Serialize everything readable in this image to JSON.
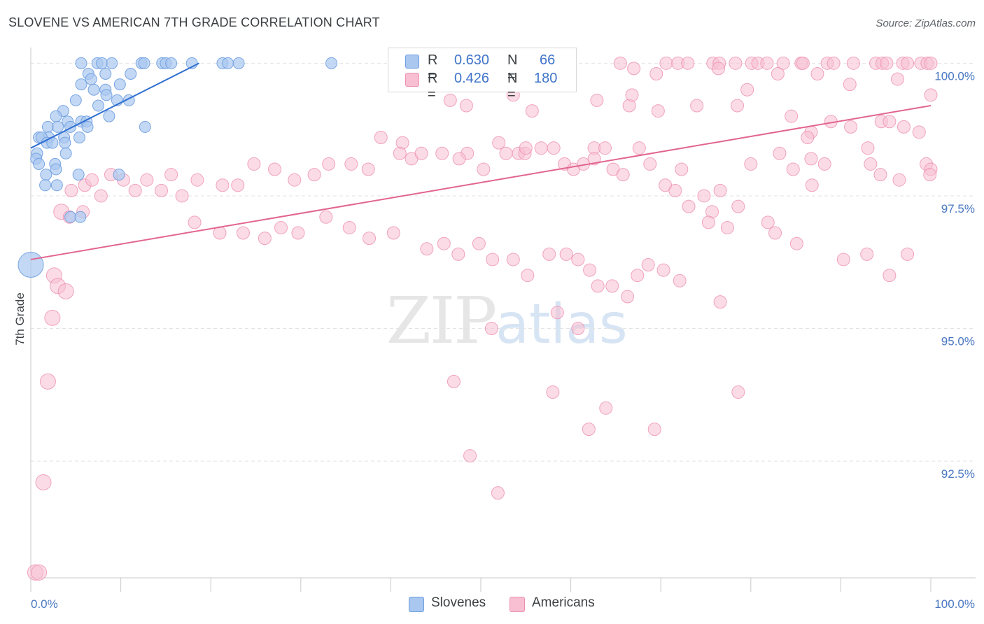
{
  "header": {
    "title": "SLOVENE VS AMERICAN 7TH GRADE CORRELATION CHART",
    "source": "Source: ZipAtlas.com"
  },
  "watermark": {
    "zip": "ZIP",
    "atlas": "atlas"
  },
  "legend": {
    "series1": {
      "r_label": "R =",
      "r_value": "0.630",
      "n_label": "N =",
      "n_value": "66"
    },
    "series2": {
      "r_label": "R =",
      "r_value": "0.426",
      "n_label": "N =",
      "n_value": "180"
    }
  },
  "bottom_legend": {
    "series1": "Slovenes",
    "series2": "Americans"
  },
  "colors": {
    "slovenes_fill": "#a9c7ef",
    "slovenes_stroke": "#6d9de0",
    "slovenes_line": "#2f6fd0",
    "americans_fill": "#f7bfd1",
    "americans_stroke": "#ee8fb0",
    "americans_line": "#e2658f",
    "tick_color": "#4a78c2",
    "grid": "#e3e3e3"
  },
  "chart_data": {
    "type": "scatter",
    "title": "SLOVENE VS AMERICAN 7TH GRADE CORRELATION CHART",
    "xlabel": "",
    "ylabel": "7th Grade",
    "xlim": [
      0,
      100
    ],
    "ylim": [
      90.3,
      100.4
    ],
    "x_ticks": [
      0,
      100
    ],
    "x_tick_labels": [
      "0.0%",
      "100.0%"
    ],
    "y_ticks": [
      92.5,
      95.0,
      97.5,
      100.0
    ],
    "y_tick_labels": [
      "92.5%",
      "95.0%",
      "97.5%",
      "100.0%"
    ],
    "grid": true,
    "legend_position": "top-center",
    "series": [
      {
        "name": "Slovenes",
        "r": 0.63,
        "n": 66,
        "trend": {
          "x": [
            0,
            18.7
          ],
          "y": [
            98.4,
            100.0
          ]
        },
        "points": [
          [
            5.6,
            100.0
          ],
          [
            7.4,
            100.0
          ],
          [
            7.9,
            100.0
          ],
          [
            9.0,
            100.0
          ],
          [
            12.3,
            100.0
          ],
          [
            12.6,
            100.0
          ],
          [
            14.6,
            100.0
          ],
          [
            15.0,
            100.0
          ],
          [
            15.6,
            100.0
          ],
          [
            17.9,
            100.0
          ],
          [
            21.3,
            100.0
          ],
          [
            21.9,
            100.0
          ],
          [
            23.1,
            100.0
          ],
          [
            33.4,
            100.0
          ],
          [
            6.4,
            99.8
          ],
          [
            8.3,
            99.8
          ],
          [
            11.1,
            99.8
          ],
          [
            5.6,
            99.6
          ],
          [
            6.7,
            99.7
          ],
          [
            7.0,
            99.5
          ],
          [
            8.3,
            99.5
          ],
          [
            9.9,
            99.6
          ],
          [
            8.4,
            99.4
          ],
          [
            5.0,
            99.3
          ],
          [
            9.6,
            99.3
          ],
          [
            10.9,
            99.3
          ],
          [
            3.6,
            99.1
          ],
          [
            7.5,
            99.2
          ],
          [
            4.1,
            98.9
          ],
          [
            5.6,
            98.9
          ],
          [
            6.2,
            98.9
          ],
          [
            8.7,
            99.0
          ],
          [
            2.8,
            99.0
          ],
          [
            1.9,
            98.8
          ],
          [
            3.0,
            98.8
          ],
          [
            4.4,
            98.8
          ],
          [
            6.3,
            98.8
          ],
          [
            2.0,
            98.6
          ],
          [
            3.7,
            98.6
          ],
          [
            5.4,
            98.6
          ],
          [
            12.7,
            98.8
          ],
          [
            0.9,
            98.6
          ],
          [
            1.2,
            98.6
          ],
          [
            1.8,
            98.5
          ],
          [
            2.4,
            98.5
          ],
          [
            3.8,
            98.5
          ],
          [
            0.7,
            98.3
          ],
          [
            0.6,
            98.2
          ],
          [
            3.9,
            98.3
          ],
          [
            0.9,
            98.1
          ],
          [
            2.7,
            98.1
          ],
          [
            1.7,
            97.9
          ],
          [
            2.8,
            98.0
          ],
          [
            9.8,
            97.9
          ],
          [
            1.6,
            97.7
          ],
          [
            2.9,
            97.7
          ],
          [
            5.3,
            97.9
          ],
          [
            5.5,
            97.1
          ],
          [
            4.4,
            97.1
          ],
          [
            0.0,
            96.2
          ]
        ]
      },
      {
        "name": "Americans",
        "r": 0.426,
        "n": 180,
        "trend": {
          "x": [
            0,
            100
          ],
          "y": [
            96.3,
            99.2
          ]
        },
        "points": [
          [
            59.0,
            100.0
          ],
          [
            65.5,
            100.0
          ],
          [
            70.6,
            100.0
          ],
          [
            71.9,
            100.0
          ],
          [
            75.8,
            100.0
          ],
          [
            76.5,
            100.0
          ],
          [
            78.3,
            100.0
          ],
          [
            80.1,
            100.0
          ],
          [
            80.8,
            100.0
          ],
          [
            83.6,
            100.0
          ],
          [
            85.6,
            100.0
          ],
          [
            85.8,
            100.0
          ],
          [
            88.5,
            100.0
          ],
          [
            89.2,
            100.0
          ],
          [
            91.4,
            100.0
          ],
          [
            93.9,
            100.0
          ],
          [
            94.6,
            100.0
          ],
          [
            95.1,
            100.0
          ],
          [
            96.9,
            100.0
          ],
          [
            97.4,
            100.0
          ],
          [
            98.9,
            100.0
          ],
          [
            99.6,
            100.0
          ],
          [
            100.0,
            100.0
          ],
          [
            81.8,
            100.0
          ],
          [
            73.0,
            100.0
          ],
          [
            67.0,
            99.9
          ],
          [
            69.5,
            99.8
          ],
          [
            76.4,
            99.9
          ],
          [
            83.0,
            99.8
          ],
          [
            87.4,
            99.8
          ],
          [
            96.3,
            99.7
          ],
          [
            91.0,
            99.6
          ],
          [
            79.6,
            99.5
          ],
          [
            100.0,
            99.4
          ],
          [
            55.5,
            99.6
          ],
          [
            46.6,
            99.3
          ],
          [
            48.4,
            99.2
          ],
          [
            53.6,
            99.4
          ],
          [
            55.7,
            99.1
          ],
          [
            62.9,
            99.3
          ],
          [
            66.5,
            99.2
          ],
          [
            66.8,
            99.4
          ],
          [
            69.7,
            99.1
          ],
          [
            74.0,
            99.2
          ],
          [
            78.5,
            99.2
          ],
          [
            84.5,
            99.0
          ],
          [
            86.7,
            98.7
          ],
          [
            86.3,
            98.6
          ],
          [
            88.9,
            98.9
          ],
          [
            91.1,
            98.8
          ],
          [
            94.5,
            98.9
          ],
          [
            95.4,
            98.9
          ],
          [
            97.0,
            98.8
          ],
          [
            98.7,
            98.7
          ],
          [
            93.0,
            98.4
          ],
          [
            99.5,
            98.1
          ],
          [
            100.0,
            98.0
          ],
          [
            38.9,
            98.6
          ],
          [
            41.3,
            98.5
          ],
          [
            48.5,
            98.3
          ],
          [
            52.0,
            98.5
          ],
          [
            54.2,
            98.3
          ],
          [
            54.9,
            98.3
          ],
          [
            58.1,
            98.4
          ],
          [
            62.6,
            98.4
          ],
          [
            67.6,
            98.4
          ],
          [
            72.3,
            98.0
          ],
          [
            80.0,
            98.1
          ],
          [
            83.2,
            98.3
          ],
          [
            84.7,
            98.0
          ],
          [
            86.7,
            98.2
          ],
          [
            88.2,
            98.1
          ],
          [
            93.3,
            98.1
          ],
          [
            94.4,
            97.9
          ],
          [
            96.5,
            97.8
          ],
          [
            99.9,
            97.9
          ],
          [
            18.5,
            97.8
          ],
          [
            21.3,
            97.7
          ],
          [
            23.0,
            97.7
          ],
          [
            24.8,
            98.1
          ],
          [
            27.1,
            98.0
          ],
          [
            29.3,
            97.8
          ],
          [
            31.5,
            97.9
          ],
          [
            33.1,
            98.1
          ],
          [
            35.6,
            98.1
          ],
          [
            37.5,
            98.0
          ],
          [
            41.0,
            98.3
          ],
          [
            42.3,
            98.2
          ],
          [
            43.4,
            98.3
          ],
          [
            45.7,
            98.3
          ],
          [
            47.6,
            98.2
          ],
          [
            50.3,
            98.0
          ],
          [
            52.8,
            98.3
          ],
          [
            55.0,
            98.4
          ],
          [
            56.7,
            98.4
          ],
          [
            59.3,
            98.1
          ],
          [
            60.3,
            98.0
          ],
          [
            61.4,
            98.1
          ],
          [
            62.6,
            98.2
          ],
          [
            63.8,
            98.4
          ],
          [
            64.7,
            98.0
          ],
          [
            65.8,
            97.9
          ],
          [
            68.8,
            98.1
          ],
          [
            70.5,
            97.7
          ],
          [
            71.6,
            97.6
          ],
          [
            73.1,
            97.3
          ],
          [
            74.8,
            97.5
          ],
          [
            75.7,
            97.2
          ],
          [
            75.3,
            97.0
          ],
          [
            76.6,
            97.6
          ],
          [
            77.4,
            96.9
          ],
          [
            78.6,
            97.3
          ],
          [
            81.9,
            97.0
          ],
          [
            82.7,
            96.8
          ],
          [
            85.1,
            96.6
          ],
          [
            86.8,
            97.7
          ],
          [
            90.3,
            96.3
          ],
          [
            92.9,
            96.4
          ],
          [
            95.4,
            96.0
          ],
          [
            97.4,
            96.4
          ],
          [
            18.2,
            97.0
          ],
          [
            21.0,
            96.8
          ],
          [
            23.6,
            96.8
          ],
          [
            26.0,
            96.7
          ],
          [
            27.8,
            96.9
          ],
          [
            29.7,
            96.8
          ],
          [
            32.8,
            97.1
          ],
          [
            35.4,
            96.9
          ],
          [
            37.6,
            96.7
          ],
          [
            40.3,
            96.8
          ],
          [
            44.0,
            96.5
          ],
          [
            45.9,
            96.6
          ],
          [
            47.5,
            96.4
          ],
          [
            49.8,
            96.6
          ],
          [
            51.3,
            96.3
          ],
          [
            53.6,
            96.3
          ],
          [
            55.2,
            96.0
          ],
          [
            57.6,
            96.4
          ],
          [
            59.5,
            96.4
          ],
          [
            60.8,
            96.3
          ],
          [
            62.1,
            96.1
          ],
          [
            63.0,
            95.8
          ],
          [
            64.6,
            95.8
          ],
          [
            66.3,
            95.6
          ],
          [
            67.4,
            96.0
          ],
          [
            68.6,
            96.2
          ],
          [
            70.3,
            96.1
          ],
          [
            72.1,
            95.9
          ],
          [
            4.5,
            97.6
          ],
          [
            6.0,
            97.7
          ],
          [
            6.8,
            97.8
          ],
          [
            7.8,
            97.5
          ],
          [
            8.9,
            97.9
          ],
          [
            10.3,
            97.8
          ],
          [
            11.6,
            97.6
          ],
          [
            12.9,
            97.8
          ],
          [
            14.5,
            97.6
          ],
          [
            15.6,
            97.9
          ],
          [
            16.8,
            97.5
          ],
          [
            3.4,
            97.2
          ],
          [
            5.8,
            97.2
          ],
          [
            4.3,
            97.1
          ],
          [
            2.6,
            96.0
          ],
          [
            3.0,
            95.8
          ],
          [
            3.9,
            95.7
          ],
          [
            2.4,
            95.2
          ],
          [
            1.9,
            94.0
          ],
          [
            1.4,
            92.1
          ],
          [
            0.5,
            90.4
          ],
          [
            0.9,
            90.4
          ],
          [
            47.0,
            94.0
          ],
          [
            51.2,
            95.0
          ],
          [
            58.5,
            95.3
          ],
          [
            60.8,
            95.0
          ],
          [
            58.0,
            93.8
          ],
          [
            63.9,
            93.5
          ],
          [
            62.0,
            93.1
          ],
          [
            69.3,
            93.1
          ],
          [
            78.6,
            93.8
          ],
          [
            48.8,
            92.6
          ],
          [
            51.9,
            91.9
          ],
          [
            76.6,
            95.5
          ]
        ]
      }
    ]
  }
}
